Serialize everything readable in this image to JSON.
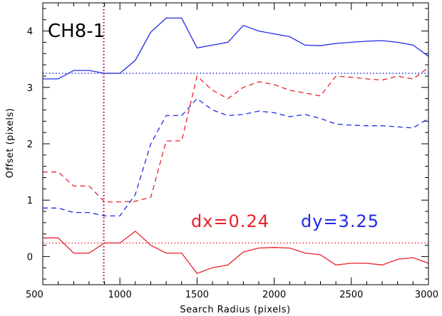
{
  "chart_data": {
    "type": "line",
    "title": "CH8-1",
    "xlabel": "Search Radius (pixels)",
    "ylabel": "Offset (pixels)",
    "xlim": [
      500,
      3000
    ],
    "ylim": [
      -0.5,
      4.5
    ],
    "x_ticks": [
      500,
      1000,
      1500,
      2000,
      2500,
      3000
    ],
    "y_ticks": [
      0,
      1,
      2,
      3,
      4
    ],
    "grid": false,
    "annotations": [
      {
        "text": "dx=0.24",
        "color": "#e8212a"
      },
      {
        "text": "dy=3.25",
        "color": "#1f2be5"
      }
    ],
    "x": [
      500,
      600,
      700,
      800,
      900,
      1000,
      1100,
      1200,
      1300,
      1400,
      1500,
      1600,
      1700,
      1800,
      1900,
      2000,
      2100,
      2200,
      2300,
      2400,
      2500,
      2600,
      2700,
      2800,
      2900,
      3000
    ],
    "series": [
      {
        "color": "#1f2be5",
        "style": "solid",
        "values": [
          3.15,
          3.15,
          3.3,
          3.3,
          3.25,
          3.25,
          3.48,
          3.98,
          4.23,
          4.23,
          3.7,
          3.75,
          3.8,
          4.1,
          4.0,
          3.95,
          3.9,
          3.75,
          3.74,
          3.78,
          3.8,
          3.82,
          3.83,
          3.8,
          3.75,
          3.55
        ]
      },
      {
        "color": "#1f2be5",
        "style": "dashed",
        "values": [
          0.86,
          0.86,
          0.78,
          0.78,
          0.72,
          0.72,
          1.1,
          2.0,
          2.5,
          2.5,
          2.8,
          2.6,
          2.5,
          2.52,
          2.58,
          2.55,
          2.48,
          2.52,
          2.45,
          2.35,
          2.33,
          2.32,
          2.32,
          2.3,
          2.28,
          2.45
        ]
      },
      {
        "color": "#e8212a",
        "style": "dashed",
        "values": [
          1.5,
          1.5,
          1.25,
          1.25,
          0.97,
          0.97,
          0.98,
          1.05,
          2.05,
          2.05,
          3.2,
          2.95,
          2.8,
          3.0,
          3.1,
          3.05,
          2.95,
          2.9,
          2.85,
          3.2,
          3.18,
          3.15,
          3.13,
          3.2,
          3.15,
          3.35
        ]
      },
      {
        "color": "#e8212a",
        "style": "solid",
        "values": [
          0.33,
          0.33,
          0.06,
          0.06,
          0.24,
          0.24,
          0.45,
          0.2,
          0.06,
          0.06,
          -0.3,
          -0.2,
          -0.15,
          0.08,
          0.15,
          0.16,
          0.15,
          0.06,
          0.03,
          -0.15,
          -0.12,
          -0.12,
          -0.15,
          -0.05,
          -0.02,
          -0.12
        ]
      }
    ],
    "reference_lines": [
      {
        "orientation": "horizontal",
        "value": 3.25,
        "color": "#1f2be5",
        "style": "dotted"
      },
      {
        "orientation": "horizontal",
        "value": 0.24,
        "color": "#e8212a",
        "style": "dotted"
      },
      {
        "orientation": "vertical",
        "value": 893,
        "color": "#1f2be5",
        "style": "dotted"
      },
      {
        "orientation": "vertical",
        "value": 898,
        "color": "#e8212a",
        "style": "dotted"
      }
    ]
  }
}
